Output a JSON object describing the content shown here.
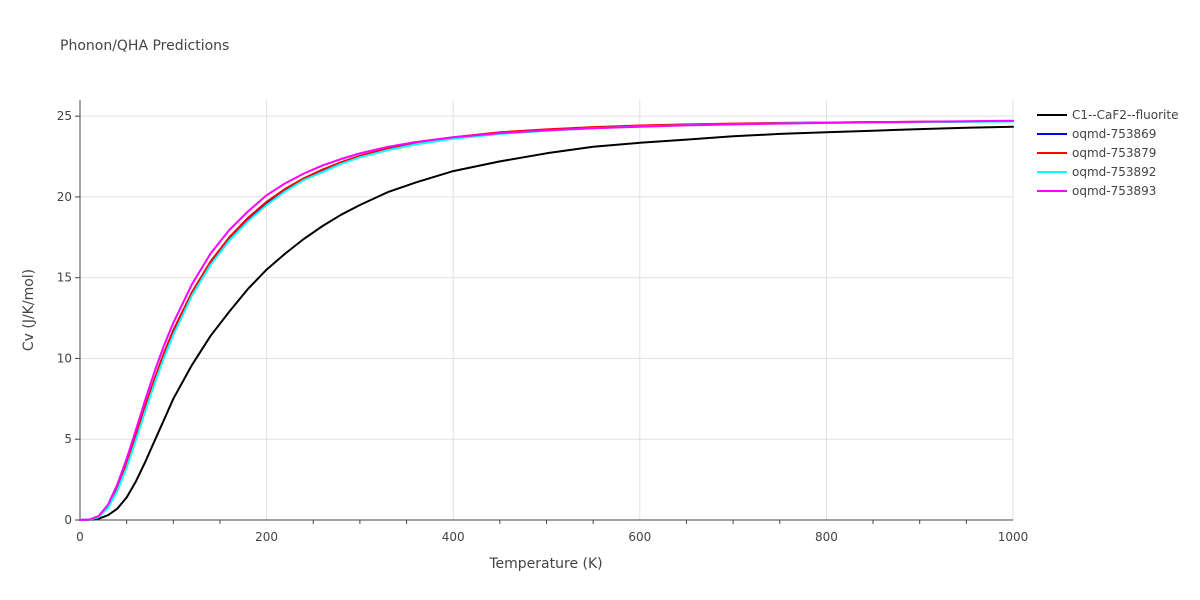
{
  "chart_data": {
    "type": "line",
    "title": "Phonon/QHA Predictions",
    "xlabel": "Temperature (K)",
    "ylabel": "Cv (J/K/mol)",
    "xlim": [
      0,
      1000
    ],
    "ylim": [
      0,
      26
    ],
    "xticks": [
      0,
      200,
      400,
      600,
      800,
      1000
    ],
    "yticks": [
      0,
      5,
      10,
      15,
      20,
      25
    ],
    "grid": true,
    "legend_position": "top-right",
    "series": [
      {
        "name": "C1--CaF2--fluorite",
        "color": "#000000",
        "x": [
          0,
          10,
          20,
          30,
          40,
          50,
          60,
          70,
          80,
          90,
          100,
          120,
          140,
          160,
          180,
          200,
          220,
          240,
          260,
          280,
          300,
          330,
          360,
          400,
          450,
          500,
          550,
          600,
          650,
          700,
          750,
          800,
          850,
          900,
          950,
          1000
        ],
        "y": [
          0,
          0.01,
          0.08,
          0.3,
          0.7,
          1.4,
          2.4,
          3.6,
          4.9,
          6.2,
          7.5,
          9.6,
          11.4,
          12.9,
          14.3,
          15.5,
          16.5,
          17.4,
          18.2,
          18.9,
          19.5,
          20.3,
          20.9,
          21.6,
          22.2,
          22.7,
          23.1,
          23.35,
          23.55,
          23.75,
          23.9,
          24.0,
          24.1,
          24.2,
          24.28,
          24.35
        ]
      },
      {
        "name": "oqmd-753869",
        "color": "#0000ff",
        "x": [
          0,
          10,
          20,
          30,
          40,
          50,
          60,
          70,
          80,
          90,
          100,
          120,
          140,
          160,
          180,
          200,
          220,
          240,
          260,
          280,
          300,
          330,
          360,
          400,
          450,
          500,
          550,
          600,
          650,
          700,
          750,
          800,
          850,
          900,
          950,
          1000
        ],
        "y": [
          0,
          0.02,
          0.2,
          0.8,
          1.9,
          3.4,
          5.1,
          6.9,
          8.6,
          10.2,
          11.6,
          14.0,
          15.9,
          17.4,
          18.6,
          19.6,
          20.4,
          21.1,
          21.6,
          22.1,
          22.5,
          22.95,
          23.3,
          23.65,
          23.95,
          24.15,
          24.3,
          24.4,
          24.47,
          24.52,
          24.56,
          24.6,
          24.62,
          24.64,
          24.66,
          24.68
        ]
      },
      {
        "name": "oqmd-753879",
        "color": "#ff0000",
        "x": [
          0,
          10,
          20,
          30,
          40,
          50,
          60,
          70,
          80,
          90,
          100,
          120,
          140,
          160,
          180,
          200,
          220,
          240,
          260,
          280,
          300,
          330,
          360,
          400,
          450,
          500,
          550,
          600,
          650,
          700,
          750,
          800,
          850,
          900,
          950,
          1000
        ],
        "y": [
          0,
          0.02,
          0.2,
          0.85,
          2.0,
          3.5,
          5.25,
          7.05,
          8.75,
          10.35,
          11.75,
          14.1,
          16.0,
          17.5,
          18.7,
          19.7,
          20.5,
          21.15,
          21.7,
          22.15,
          22.55,
          23.0,
          23.35,
          23.7,
          24.0,
          24.18,
          24.32,
          24.42,
          24.49,
          24.54,
          24.58,
          24.61,
          24.63,
          24.65,
          24.67,
          24.69
        ]
      },
      {
        "name": "oqmd-753892",
        "color": "#00ffff",
        "x": [
          0,
          10,
          20,
          30,
          40,
          50,
          60,
          70,
          80,
          90,
          100,
          120,
          140,
          160,
          180,
          200,
          220,
          240,
          260,
          280,
          300,
          330,
          360,
          400,
          450,
          500,
          550,
          600,
          650,
          700,
          750,
          800,
          850,
          900,
          950,
          1000
        ],
        "y": [
          0,
          0.02,
          0.18,
          0.75,
          1.8,
          3.25,
          4.95,
          6.75,
          8.45,
          10.05,
          11.45,
          13.9,
          15.8,
          17.3,
          18.5,
          19.5,
          20.35,
          21.05,
          21.55,
          22.05,
          22.45,
          22.9,
          23.25,
          23.6,
          23.9,
          24.1,
          24.25,
          24.36,
          24.44,
          24.5,
          24.55,
          24.59,
          24.61,
          24.63,
          24.65,
          24.67
        ]
      },
      {
        "name": "oqmd-753893",
        "color": "#ff00ff",
        "x": [
          0,
          10,
          20,
          30,
          40,
          50,
          60,
          70,
          80,
          90,
          100,
          120,
          140,
          160,
          180,
          200,
          220,
          240,
          260,
          280,
          300,
          330,
          360,
          400,
          450,
          500,
          550,
          600,
          650,
          700,
          750,
          800,
          850,
          900,
          950,
          1000
        ],
        "y": [
          0,
          0.03,
          0.25,
          0.95,
          2.2,
          3.8,
          5.6,
          7.45,
          9.2,
          10.8,
          12.2,
          14.6,
          16.5,
          17.95,
          19.1,
          20.1,
          20.85,
          21.45,
          21.95,
          22.35,
          22.7,
          23.1,
          23.4,
          23.7,
          23.95,
          24.12,
          24.25,
          24.35,
          24.43,
          24.49,
          24.54,
          24.58,
          24.62,
          24.65,
          24.68,
          24.72
        ]
      }
    ]
  }
}
